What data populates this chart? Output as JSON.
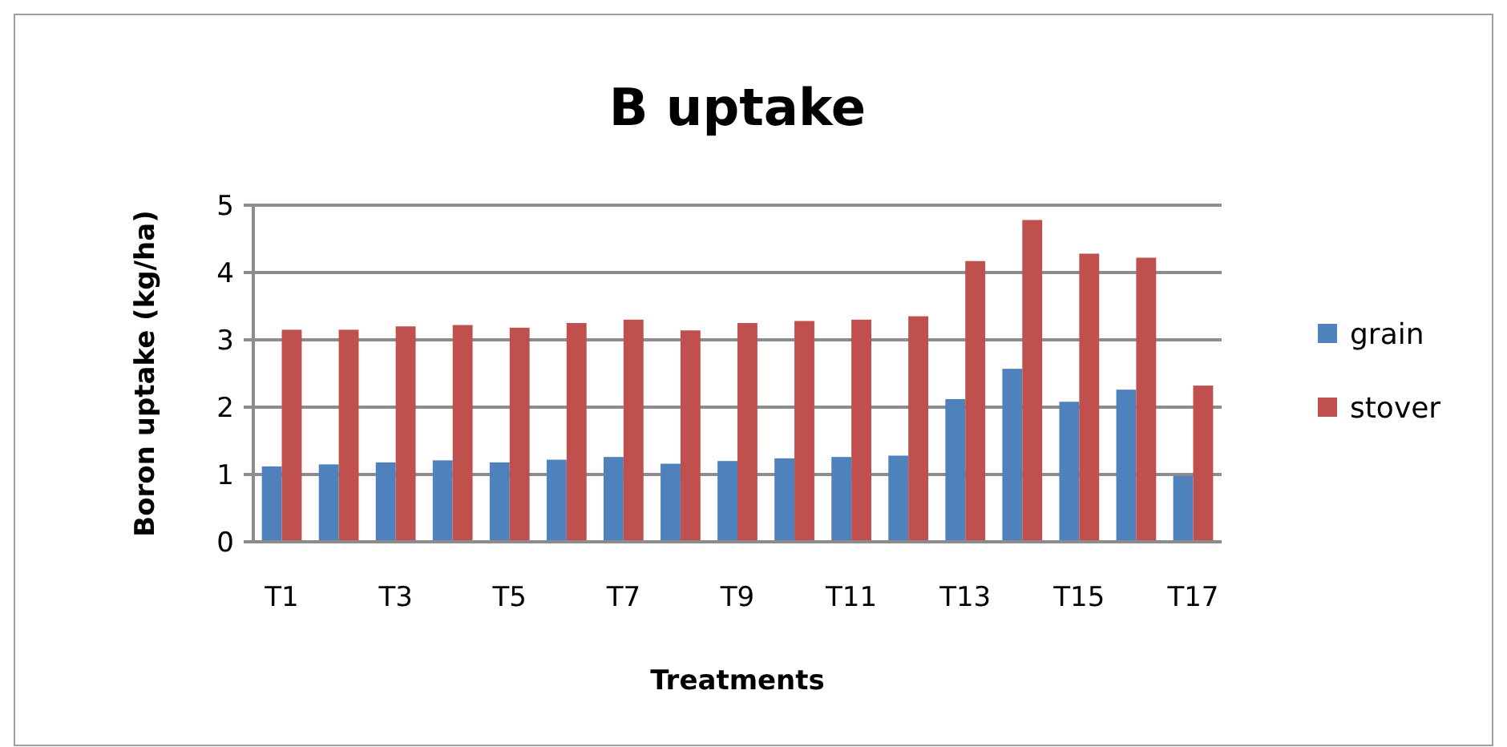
{
  "chart_data": {
    "type": "bar",
    "title": "B uptake",
    "xlabel": "Treatments",
    "ylabel": "Boron uptake (kg/ha)",
    "categories": [
      "T1",
      null,
      "T3",
      null,
      "T5",
      null,
      "T7",
      null,
      "T9",
      null,
      "T11",
      null,
      "T13",
      null,
      "T15",
      null,
      "T17"
    ],
    "series": [
      {
        "name": "grain",
        "color": "#4f81bd",
        "values": [
          1.12,
          1.15,
          1.18,
          1.21,
          1.18,
          1.22,
          1.26,
          1.16,
          1.2,
          1.24,
          1.26,
          1.28,
          2.12,
          2.57,
          2.08,
          2.26,
          0.98
        ]
      },
      {
        "name": "stover",
        "color": "#c0504d",
        "values": [
          3.15,
          3.15,
          3.2,
          3.22,
          3.18,
          3.25,
          3.3,
          3.14,
          3.25,
          3.28,
          3.3,
          3.35,
          4.17,
          4.78,
          4.28,
          4.22,
          2.32
        ]
      }
    ],
    "ylim": [
      0,
      5
    ],
    "yticks": [
      0,
      1,
      2,
      3,
      4,
      5
    ],
    "grid": "y",
    "legend": "right"
  }
}
